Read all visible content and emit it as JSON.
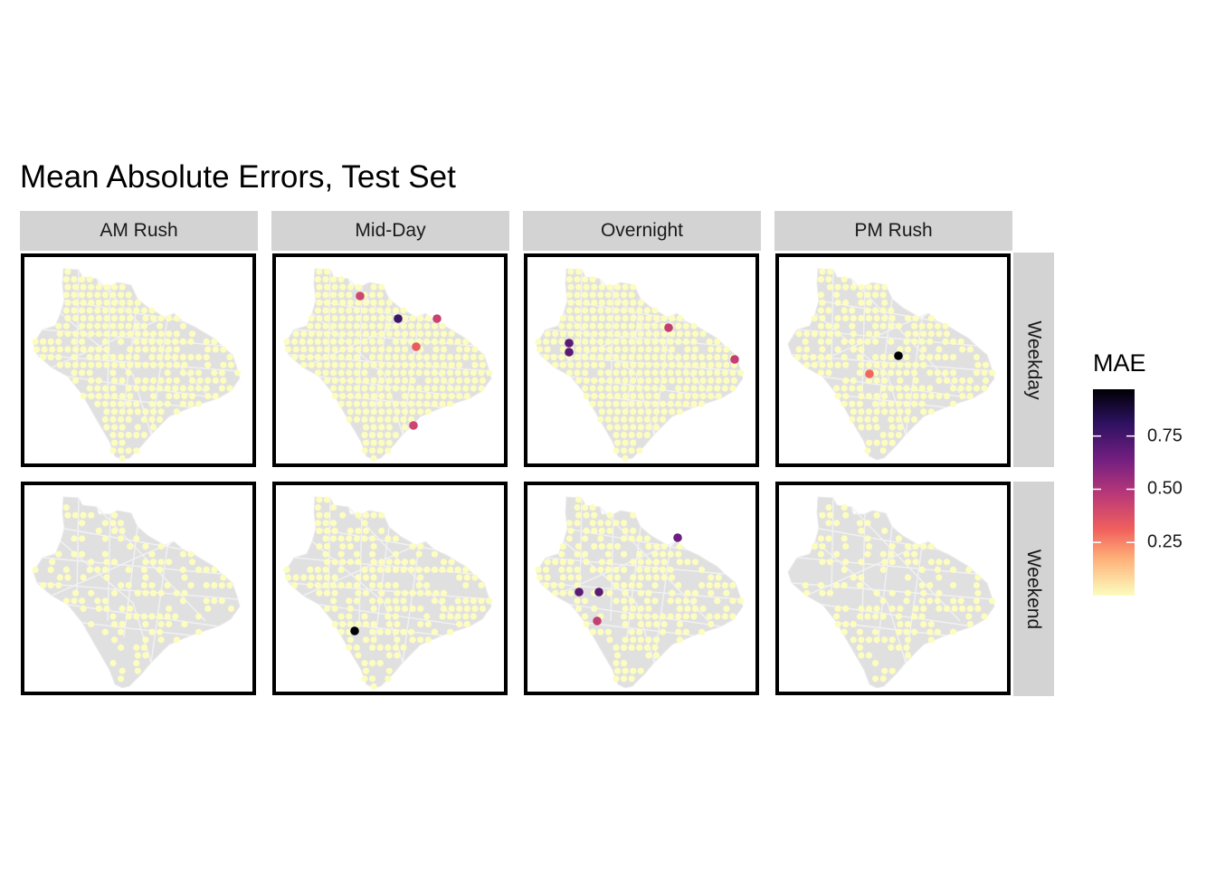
{
  "title": "Mean Absolute Errors, Test Set",
  "columns": [
    "AM Rush",
    "Mid-Day",
    "Overnight",
    "PM Rush"
  ],
  "rows": [
    "Weekday",
    "Weekend"
  ],
  "legend": {
    "title": "MAE",
    "ticks": [
      {
        "value": 0.25,
        "label": "0.25"
      },
      {
        "value": 0.5,
        "label": "0.50"
      },
      {
        "value": 0.75,
        "label": "0.75"
      }
    ],
    "range": [
      0,
      0.97
    ],
    "palette": [
      "#fcfdbf",
      "#feb078",
      "#f1605d",
      "#b63679",
      "#721f81",
      "#2c115f",
      "#000004"
    ]
  },
  "colors": {
    "map_fill": "#e0e0e0",
    "map_lines": "#f2f2f2",
    "strip_fill": "#d3d3d3",
    "low_error_point": "#fcfdbf"
  },
  "chart_data": {
    "type": "faceted point map",
    "facets": [
      {
        "row": "Weekday",
        "column": "AM Rush",
        "highlights": []
      },
      {
        "row": "Weekday",
        "column": "Mid-Day",
        "highlights": [
          {
            "mae": 0.42
          },
          {
            "mae": 0.78
          },
          {
            "mae": 0.43
          },
          {
            "mae": 0.33
          },
          {
            "mae": 0.42
          }
        ]
      },
      {
        "row": "Weekday",
        "column": "Overnight",
        "highlights": [
          {
            "mae": 0.7
          },
          {
            "mae": 0.7
          },
          {
            "mae": 0.45
          },
          {
            "mae": 0.45
          }
        ]
      },
      {
        "row": "Weekday",
        "column": "PM Rush",
        "highlights": [
          {
            "mae": 0.97
          },
          {
            "mae": 0.3
          }
        ]
      },
      {
        "row": "Weekend",
        "column": "AM Rush",
        "highlights": []
      },
      {
        "row": "Weekend",
        "column": "Mid-Day",
        "highlights": [
          {
            "mae": 0.97
          }
        ]
      },
      {
        "row": "Weekend",
        "column": "Overnight",
        "highlights": [
          {
            "mae": 0.65
          },
          {
            "mae": 0.7
          },
          {
            "mae": 0.7
          },
          {
            "mae": 0.45
          }
        ]
      },
      {
        "row": "Weekend",
        "column": "PM Rush",
        "highlights": []
      }
    ]
  }
}
